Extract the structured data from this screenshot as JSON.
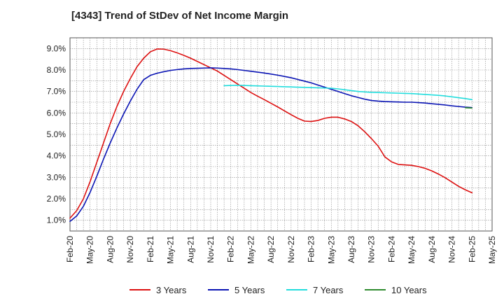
{
  "chart_data": {
    "type": "line",
    "title": "[4343]  Trend of StDev of Net Income Margin",
    "xlabel": "",
    "ylabel": "",
    "x_ticks": [
      "Feb-20",
      "May-20",
      "Aug-20",
      "Nov-20",
      "Feb-21",
      "May-21",
      "Aug-21",
      "Nov-21",
      "Feb-22",
      "May-22",
      "Aug-22",
      "Nov-22",
      "Feb-23",
      "May-23",
      "Aug-23",
      "Nov-23",
      "Feb-24",
      "May-24",
      "Aug-24",
      "Nov-24",
      "Feb-25",
      "May-25"
    ],
    "y_ticks": [
      "1.0%",
      "2.0%",
      "3.0%",
      "4.0%",
      "5.0%",
      "6.0%",
      "7.0%",
      "8.0%",
      "9.0%"
    ],
    "ylim": [
      0.5,
      9.5
    ],
    "grid": true,
    "legend_position": "bottom",
    "series": [
      {
        "name": "3 Years",
        "color": "#dd1111",
        "points": [
          [
            "Feb-20",
            1.1
          ],
          [
            "Mar-20",
            1.45
          ],
          [
            "Apr-20",
            2.0
          ],
          [
            "May-20",
            2.8
          ],
          [
            "Jun-20",
            3.7
          ],
          [
            "Jul-20",
            4.6
          ],
          [
            "Aug-20",
            5.5
          ],
          [
            "Sep-20",
            6.3
          ],
          [
            "Oct-20",
            7.0
          ],
          [
            "Nov-20",
            7.6
          ],
          [
            "Dec-20",
            8.15
          ],
          [
            "Jan-21",
            8.55
          ],
          [
            "Feb-21",
            8.85
          ],
          [
            "Mar-21",
            8.98
          ],
          [
            "Apr-21",
            8.97
          ],
          [
            "May-21",
            8.9
          ],
          [
            "Jun-21",
            8.8
          ],
          [
            "Jul-21",
            8.68
          ],
          [
            "Aug-21",
            8.55
          ],
          [
            "Sep-21",
            8.4
          ],
          [
            "Oct-21",
            8.25
          ],
          [
            "Nov-21",
            8.1
          ],
          [
            "Dec-21",
            7.95
          ],
          [
            "Jan-22",
            7.75
          ],
          [
            "Feb-22",
            7.55
          ],
          [
            "Mar-22",
            7.35
          ],
          [
            "Apr-22",
            7.15
          ],
          [
            "May-22",
            6.95
          ],
          [
            "Jun-22",
            6.78
          ],
          [
            "Jul-22",
            6.62
          ],
          [
            "Aug-22",
            6.45
          ],
          [
            "Sep-22",
            6.28
          ],
          [
            "Oct-22",
            6.1
          ],
          [
            "Nov-22",
            5.92
          ],
          [
            "Dec-22",
            5.75
          ],
          [
            "Jan-23",
            5.62
          ],
          [
            "Feb-23",
            5.6
          ],
          [
            "Mar-23",
            5.65
          ],
          [
            "Apr-23",
            5.75
          ],
          [
            "May-23",
            5.8
          ],
          [
            "Jun-23",
            5.8
          ],
          [
            "Jul-23",
            5.72
          ],
          [
            "Aug-23",
            5.6
          ],
          [
            "Sep-23",
            5.4
          ],
          [
            "Oct-23",
            5.12
          ],
          [
            "Nov-23",
            4.8
          ],
          [
            "Dec-23",
            4.45
          ],
          [
            "Jan-24",
            3.95
          ],
          [
            "Feb-24",
            3.72
          ],
          [
            "Mar-24",
            3.6
          ],
          [
            "Apr-24",
            3.58
          ],
          [
            "May-24",
            3.56
          ],
          [
            "Jun-24",
            3.5
          ],
          [
            "Jul-24",
            3.42
          ],
          [
            "Aug-24",
            3.3
          ],
          [
            "Sep-24",
            3.15
          ],
          [
            "Oct-24",
            2.98
          ],
          [
            "Nov-24",
            2.78
          ],
          [
            "Dec-24",
            2.58
          ],
          [
            "Jan-25",
            2.42
          ],
          [
            "Feb-25",
            2.28
          ]
        ]
      },
      {
        "name": "5 Years",
        "color": "#0a14b4",
        "points": [
          [
            "Feb-20",
            0.95
          ],
          [
            "Mar-20",
            1.2
          ],
          [
            "Apr-20",
            1.65
          ],
          [
            "May-20",
            2.3
          ],
          [
            "Jun-20",
            3.05
          ],
          [
            "Jul-20",
            3.85
          ],
          [
            "Aug-20",
            4.6
          ],
          [
            "Sep-20",
            5.3
          ],
          [
            "Oct-20",
            5.95
          ],
          [
            "Nov-20",
            6.55
          ],
          [
            "Dec-20",
            7.1
          ],
          [
            "Jan-21",
            7.55
          ],
          [
            "Feb-21",
            7.75
          ],
          [
            "Mar-21",
            7.85
          ],
          [
            "Apr-21",
            7.92
          ],
          [
            "May-21",
            7.98
          ],
          [
            "Jun-21",
            8.02
          ],
          [
            "Jul-21",
            8.05
          ],
          [
            "Aug-21",
            8.07
          ],
          [
            "Sep-21",
            8.08
          ],
          [
            "Oct-21",
            8.09
          ],
          [
            "Nov-21",
            8.1
          ],
          [
            "Dec-21",
            8.09
          ],
          [
            "Jan-22",
            8.07
          ],
          [
            "Feb-22",
            8.05
          ],
          [
            "Mar-22",
            8.02
          ],
          [
            "Apr-22",
            7.98
          ],
          [
            "May-22",
            7.94
          ],
          [
            "Jun-22",
            7.9
          ],
          [
            "Jul-22",
            7.86
          ],
          [
            "Aug-22",
            7.81
          ],
          [
            "Sep-22",
            7.76
          ],
          [
            "Oct-22",
            7.7
          ],
          [
            "Nov-22",
            7.64
          ],
          [
            "Dec-22",
            7.56
          ],
          [
            "Jan-23",
            7.48
          ],
          [
            "Feb-23",
            7.4
          ],
          [
            "Mar-23",
            7.3
          ],
          [
            "Apr-23",
            7.2
          ],
          [
            "May-23",
            7.1
          ],
          [
            "Jun-23",
            7.0
          ],
          [
            "Jul-23",
            6.9
          ],
          [
            "Aug-23",
            6.8
          ],
          [
            "Sep-23",
            6.72
          ],
          [
            "Oct-23",
            6.64
          ],
          [
            "Nov-23",
            6.58
          ],
          [
            "Dec-23",
            6.55
          ],
          [
            "Jan-24",
            6.53
          ],
          [
            "Feb-24",
            6.52
          ],
          [
            "Mar-24",
            6.51
          ],
          [
            "Apr-24",
            6.5
          ],
          [
            "May-24",
            6.5
          ],
          [
            "Jun-24",
            6.48
          ],
          [
            "Jul-24",
            6.46
          ],
          [
            "Aug-24",
            6.43
          ],
          [
            "Sep-24",
            6.4
          ],
          [
            "Oct-24",
            6.37
          ],
          [
            "Nov-24",
            6.33
          ],
          [
            "Dec-24",
            6.3
          ],
          [
            "Jan-25",
            6.27
          ],
          [
            "Feb-25",
            6.25
          ]
        ]
      },
      {
        "name": "7 Years",
        "color": "#22dddd",
        "points": [
          [
            "Jan-22",
            7.27
          ],
          [
            "Feb-22",
            7.28
          ],
          [
            "Mar-22",
            7.29
          ],
          [
            "Apr-22",
            7.28
          ],
          [
            "May-22",
            7.27
          ],
          [
            "Jun-22",
            7.26
          ],
          [
            "Jul-22",
            7.25
          ],
          [
            "Aug-22",
            7.24
          ],
          [
            "Sep-22",
            7.23
          ],
          [
            "Oct-22",
            7.22
          ],
          [
            "Nov-22",
            7.21
          ],
          [
            "Dec-22",
            7.2
          ],
          [
            "Jan-23",
            7.19
          ],
          [
            "Feb-23",
            7.18
          ],
          [
            "Mar-23",
            7.17
          ],
          [
            "Apr-23",
            7.16
          ],
          [
            "May-23",
            7.15
          ],
          [
            "Jun-23",
            7.12
          ],
          [
            "Jul-23",
            7.08
          ],
          [
            "Aug-23",
            7.04
          ],
          [
            "Sep-23",
            7.0
          ],
          [
            "Oct-23",
            6.98
          ],
          [
            "Nov-23",
            6.96
          ],
          [
            "Dec-23",
            6.95
          ],
          [
            "Jan-24",
            6.94
          ],
          [
            "Feb-24",
            6.93
          ],
          [
            "Mar-24",
            6.92
          ],
          [
            "Apr-24",
            6.91
          ],
          [
            "May-24",
            6.9
          ],
          [
            "Jun-24",
            6.88
          ],
          [
            "Jul-24",
            6.86
          ],
          [
            "Aug-24",
            6.84
          ],
          [
            "Sep-24",
            6.82
          ],
          [
            "Oct-24",
            6.79
          ],
          [
            "Nov-24",
            6.75
          ],
          [
            "Dec-24",
            6.71
          ],
          [
            "Jan-25",
            6.67
          ],
          [
            "Feb-25",
            6.62
          ]
        ]
      },
      {
        "name": "10 Years",
        "color": "#2e8b2e",
        "points": [
          [
            "Jan-25",
            6.24
          ],
          [
            "Feb-25",
            6.23
          ]
        ]
      }
    ]
  }
}
